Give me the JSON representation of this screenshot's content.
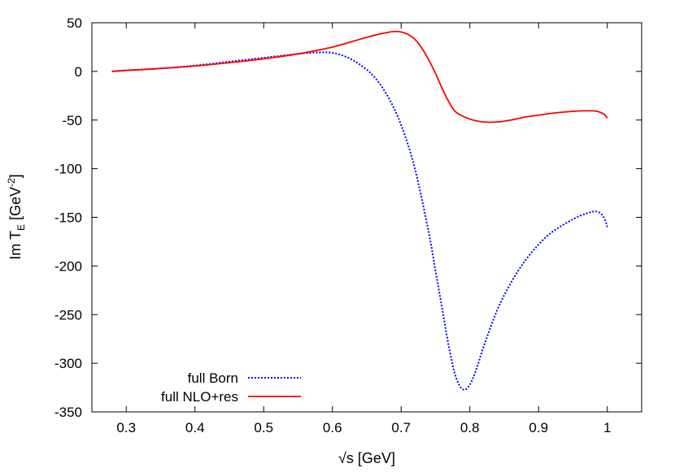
{
  "chart_data": {
    "type": "line",
    "title": "",
    "xlabel": "√s [GeV]",
    "ylabel": {
      "prefix": "Im T",
      "subscript": "E",
      "unit_open": " [GeV",
      "superscript": "-2",
      "unit_close": "]"
    },
    "xlim": [
      0.25,
      1.05
    ],
    "ylim": [
      -350,
      50
    ],
    "xticks": [
      "0.3",
      "0.4",
      "0.5",
      "0.6",
      "0.7",
      "0.8",
      "0.9",
      "1"
    ],
    "xtick_values": [
      0.3,
      0.4,
      0.5,
      0.6,
      0.7,
      0.8,
      0.9,
      1.0
    ],
    "yticks": [
      "50",
      "0",
      "-50",
      "-100",
      "-150",
      "-200",
      "-250",
      "-300",
      "-350"
    ],
    "ytick_values": [
      50,
      0,
      -50,
      -100,
      -150,
      -200,
      -250,
      -300,
      -350
    ],
    "grid": false,
    "legend_position": "bottom-left",
    "series": [
      {
        "name": "full Born",
        "color": "#0000ff",
        "style": "dotted",
        "x": [
          0.279,
          0.3,
          0.35,
          0.4,
          0.45,
          0.5,
          0.55,
          0.58,
          0.6,
          0.62,
          0.64,
          0.66,
          0.68,
          0.7,
          0.72,
          0.74,
          0.75,
          0.76,
          0.77,
          0.78,
          0.79,
          0.8,
          0.81,
          0.82,
          0.84,
          0.86,
          0.88,
          0.9,
          0.92,
          0.95,
          0.97,
          0.985,
          0.995,
          1.0
        ],
        "y": [
          0,
          1,
          3,
          6,
          10,
          14,
          18,
          19.5,
          19,
          15,
          7,
          -5,
          -25,
          -55,
          -100,
          -165,
          -205,
          -245,
          -285,
          -315,
          -327,
          -322,
          -305,
          -283,
          -245,
          -217,
          -195,
          -178,
          -165,
          -152,
          -146,
          -144,
          -150,
          -160
        ]
      },
      {
        "name": "full NLO+res",
        "color": "#ff0000",
        "style": "solid",
        "x": [
          0.279,
          0.3,
          0.35,
          0.4,
          0.45,
          0.5,
          0.55,
          0.6,
          0.63,
          0.66,
          0.68,
          0.69,
          0.7,
          0.71,
          0.72,
          0.73,
          0.74,
          0.75,
          0.76,
          0.77,
          0.78,
          0.8,
          0.82,
          0.84,
          0.86,
          0.88,
          0.9,
          0.92,
          0.95,
          0.97,
          0.985,
          0.995,
          1.0
        ],
        "y": [
          0,
          1,
          3,
          5.5,
          9,
          13,
          18,
          25,
          31,
          37,
          40,
          41,
          40.5,
          38,
          33,
          24,
          12,
          -2,
          -18,
          -32,
          -42,
          -49,
          -52,
          -52,
          -50,
          -47,
          -45,
          -43,
          -41,
          -40.5,
          -41,
          -44,
          -48
        ]
      }
    ]
  }
}
